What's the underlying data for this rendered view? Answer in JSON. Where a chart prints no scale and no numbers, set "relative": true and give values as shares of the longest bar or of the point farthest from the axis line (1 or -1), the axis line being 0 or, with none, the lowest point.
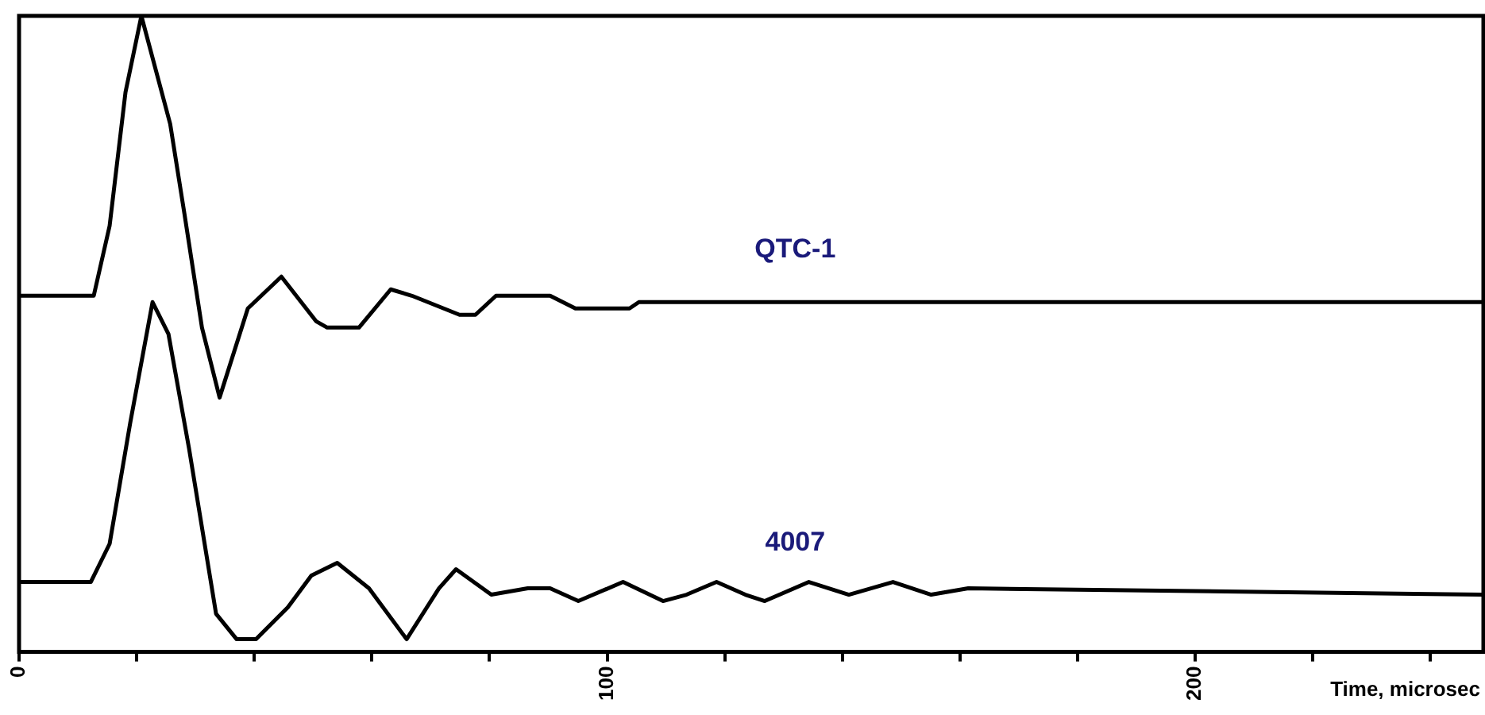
{
  "chart_data": {
    "type": "line",
    "xlabel": "Time, microsec",
    "relative": true,
    "legend": false,
    "grid": false,
    "marker": "none",
    "line_style": "solid",
    "xlim": [
      0,
      249
    ],
    "xticks": [
      0,
      {
        "value": 20,
        "label": null
      },
      {
        "value": 40,
        "label": null
      },
      {
        "value": 60,
        "label": null
      },
      {
        "value": 80,
        "label": null
      },
      100,
      {
        "value": 120,
        "label": null
      },
      {
        "value": 140,
        "label": null
      },
      {
        "value": 160,
        "label": null
      },
      {
        "value": 180,
        "label": null
      },
      200,
      {
        "value": 220,
        "label": null
      },
      {
        "value": 240,
        "label": null
      }
    ],
    "series": [
      {
        "name": "QTC-1",
        "color": "#000000",
        "x": [
          0,
          12.7,
          15.4,
          18.1,
          20.8,
          25.7,
          28.1,
          31.1,
          34.1,
          38.9,
          44.6,
          50.5,
          52.4,
          57.8,
          63.2,
          66.8,
          74.9,
          77.6,
          81.1,
          90.3,
          94.6,
          103.8,
          105.4,
          113.5,
          115.4,
          249
        ],
        "values": [
          0.56,
          0.56,
          0.67,
          0.88,
          1,
          0.83,
          0.69,
          0.51,
          0.4,
          0.54,
          0.59,
          0.52,
          0.51,
          0.51,
          0.57,
          0.56,
          0.53,
          0.53,
          0.56,
          0.56,
          0.54,
          0.54,
          0.55,
          0.55,
          0.55,
          0.55
        ]
      },
      {
        "name": "4007",
        "color": "#000000",
        "x": [
          0,
          12.2,
          15.4,
          18.9,
          22.7,
          25.4,
          28.9,
          33.5,
          37.0,
          40.3,
          45.7,
          49.7,
          54.1,
          59.5,
          65.9,
          71.4,
          74.3,
          80.3,
          86.5,
          90.3,
          95.1,
          102.7,
          109.5,
          113.5,
          118.6,
          123.5,
          126.8,
          134.3,
          141.1,
          148.6,
          155.1,
          161.4,
          249
        ],
        "values": [
          0.11,
          0.11,
          0.17,
          0.36,
          0.55,
          0.5,
          0.32,
          0.06,
          0.02,
          0.02,
          0.07,
          0.12,
          0.14,
          0.1,
          0.02,
          0.1,
          0.13,
          0.09,
          0.1,
          0.1,
          0.08,
          0.11,
          0.08,
          0.09,
          0.11,
          0.09,
          0.08,
          0.11,
          0.09,
          0.11,
          0.09,
          0.1,
          0.09
        ]
      }
    ]
  }
}
